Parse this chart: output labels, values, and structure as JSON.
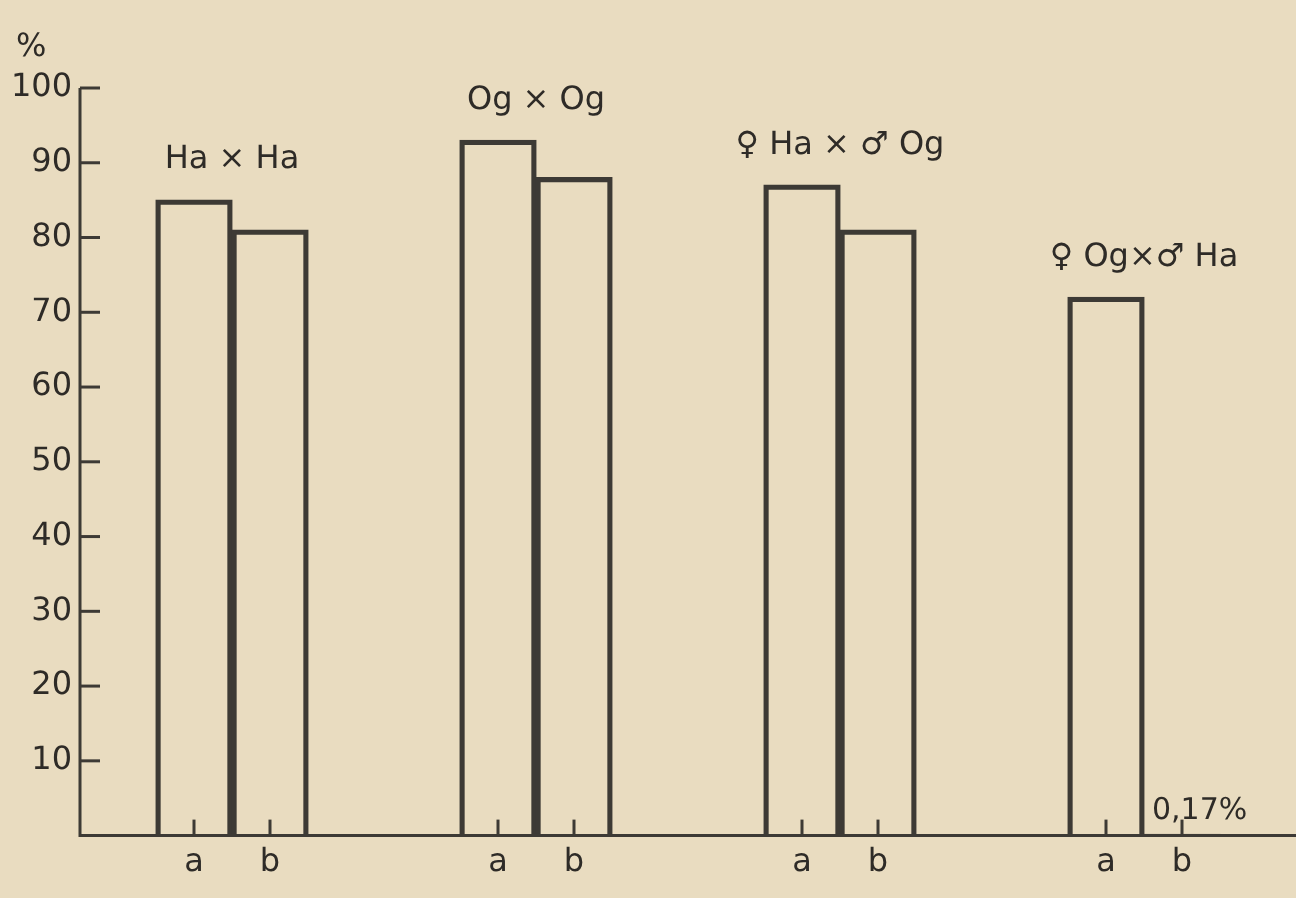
{
  "chart_data": {
    "type": "bar",
    "ylabel": "%",
    "categories": [
      null,
      "a",
      "b",
      null,
      null,
      "a",
      "b",
      null,
      null,
      "a",
      "b",
      null,
      null,
      "a",
      "b",
      null
    ],
    "values": [
      null,
      85,
      81,
      null,
      null,
      93,
      88,
      null,
      null,
      87,
      81,
      null,
      null,
      72,
      0.17,
      null
    ],
    "value_labels": [
      null,
      null,
      null,
      null,
      null,
      null,
      null,
      null,
      null,
      null,
      null,
      null,
      null,
      null,
      "0,17%",
      null
    ],
    "color": "#3d3a35",
    "annotations": [
      "Ha × Ha",
      "Og × Og",
      "♀ Ha × ♂ Og",
      "♀ Og×♂ Ha"
    ],
    "ylim": [
      0,
      100
    ],
    "yticks": [
      10,
      20,
      30,
      40,
      50,
      60,
      70,
      80,
      90,
      100
    ],
    "grid": false,
    "legend": false
  }
}
